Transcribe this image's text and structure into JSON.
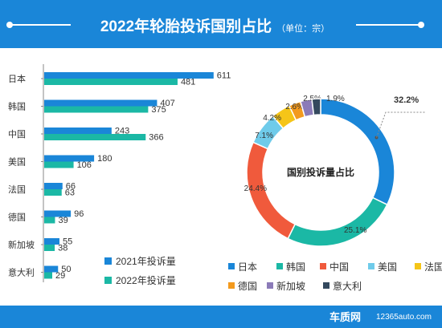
{
  "header": {
    "title": "2022年轮胎投诉国别占比",
    "unit": "（单位：宗）",
    "color": "#1a86d8"
  },
  "watermark": {
    "logo": "车质网",
    "site": "12365auto.com"
  },
  "chart_data": [
    {
      "type": "bar",
      "orientation": "horizontal",
      "categories": [
        "日本",
        "韩国",
        "中国",
        "美国",
        "法国",
        "德国",
        "新加坡",
        "意大利"
      ],
      "series": [
        {
          "name": "2021年投诉量",
          "color": "#1a86d8",
          "values": [
            611,
            407,
            243,
            180,
            66,
            96,
            55,
            50
          ]
        },
        {
          "name": "2022年投诉量",
          "color": "#1bb8a5",
          "values": [
            481,
            375,
            366,
            106,
            63,
            39,
            38,
            29
          ]
        }
      ],
      "legend_position": "bottom"
    },
    {
      "type": "pie",
      "style": "donut",
      "title": "国别投诉量占比",
      "labels": [
        "日本",
        "韩国",
        "中国",
        "美国",
        "法国",
        "德国",
        "新加坡",
        "意大利"
      ],
      "values": [
        32.2,
        25.1,
        24.4,
        7.1,
        4.2,
        2.6,
        2.5,
        1.9
      ],
      "value_labels": [
        "32.2%",
        "25.1%",
        "24.4%",
        "7.1%",
        "4.2%",
        "2.6%",
        "2.5%",
        "1.9%"
      ],
      "colors": [
        "#1a86d8",
        "#1bb8a5",
        "#f05a3c",
        "#6fcbea",
        "#f5c518",
        "#f39a1e",
        "#8b7bb8",
        "#34495e"
      ],
      "highlight": "32.2%"
    }
  ]
}
